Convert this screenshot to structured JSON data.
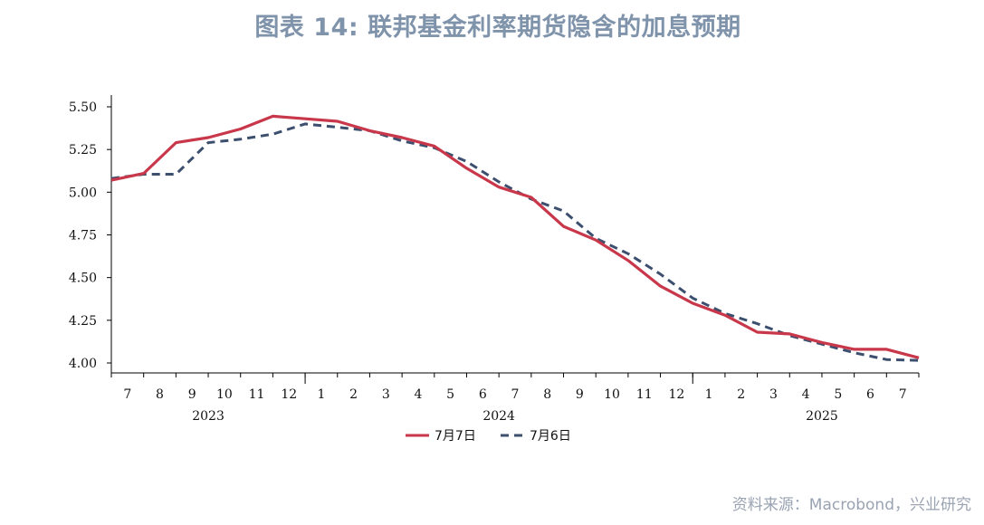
{
  "title": "图表 14: 联邦基金利率期货隐含的加息预期",
  "source": "资料来源：Macrobond，兴业研究",
  "colors": {
    "title": "#7f93ab",
    "series_red": "#c8374a",
    "series_blue": "#3d4f6e",
    "source": "#9aa3b2"
  },
  "chart_data": {
    "type": "line",
    "title": "图表 14: 联邦基金利率期货隐含的加息预期",
    "xlabel": "",
    "ylabel": "",
    "ylim": [
      4.0,
      5.5
    ],
    "y_ticks": [
      "5.50",
      "5.25",
      "5.00",
      "4.75",
      "4.50",
      "4.25",
      "4.00"
    ],
    "x_month_labels": [
      "7",
      "8",
      "9",
      "10",
      "11",
      "12",
      "1",
      "2",
      "3",
      "4",
      "5",
      "6",
      "7",
      "8",
      "9",
      "10",
      "11",
      "12",
      "1",
      "2",
      "3",
      "4",
      "5",
      "6",
      "7"
    ],
    "x_year_labels": [
      {
        "label": "2023",
        "center": 2.5
      },
      {
        "label": "2024",
        "center": 11.5
      },
      {
        "label": "2025",
        "center": 21.5
      }
    ],
    "x_year_boundaries": [
      5.5,
      17.5
    ],
    "legend": {
      "placement": "bottom-center"
    },
    "grid": false,
    "series": [
      {
        "name": "7月7日",
        "style": "solid",
        "color": "#c8374a",
        "points": [
          [
            -0.5,
            5.07
          ],
          [
            0.5,
            5.11
          ],
          [
            1.5,
            5.29
          ],
          [
            2.5,
            5.32
          ],
          [
            3.5,
            5.37
          ],
          [
            4.5,
            5.445
          ],
          [
            5.5,
            5.43
          ],
          [
            6.5,
            5.415
          ],
          [
            7.5,
            5.36
          ],
          [
            8.5,
            5.32
          ],
          [
            9.5,
            5.27
          ],
          [
            10.5,
            5.14
          ],
          [
            11.5,
            5.03
          ],
          [
            12.5,
            4.97
          ],
          [
            13.5,
            4.8
          ],
          [
            14.5,
            4.72
          ],
          [
            15.5,
            4.6
          ],
          [
            16.5,
            4.45
          ],
          [
            17.5,
            4.35
          ],
          [
            18.5,
            4.28
          ],
          [
            19.5,
            4.18
          ],
          [
            20.5,
            4.17
          ],
          [
            21.5,
            4.12
          ],
          [
            22.5,
            4.08
          ],
          [
            23.5,
            4.08
          ],
          [
            24.5,
            4.03
          ]
        ]
      },
      {
        "name": "7月6日",
        "style": "dashed",
        "color": "#3d4f6e",
        "points": [
          [
            -0.5,
            5.08
          ],
          [
            0.5,
            5.105
          ],
          [
            1.5,
            5.105
          ],
          [
            2.5,
            5.29
          ],
          [
            3.5,
            5.31
          ],
          [
            4.5,
            5.34
          ],
          [
            5.5,
            5.4
          ],
          [
            6.5,
            5.38
          ],
          [
            7.5,
            5.36
          ],
          [
            8.5,
            5.3
          ],
          [
            9.5,
            5.26
          ],
          [
            10.5,
            5.18
          ],
          [
            11.5,
            5.06
          ],
          [
            12.5,
            4.96
          ],
          [
            13.5,
            4.89
          ],
          [
            14.5,
            4.73
          ],
          [
            15.5,
            4.64
          ],
          [
            16.5,
            4.52
          ],
          [
            17.5,
            4.38
          ],
          [
            18.5,
            4.29
          ],
          [
            19.5,
            4.23
          ],
          [
            20.5,
            4.16
          ],
          [
            21.5,
            4.11
          ],
          [
            22.5,
            4.06
          ],
          [
            23.5,
            4.02
          ],
          [
            24.5,
            4.015
          ]
        ]
      }
    ]
  }
}
